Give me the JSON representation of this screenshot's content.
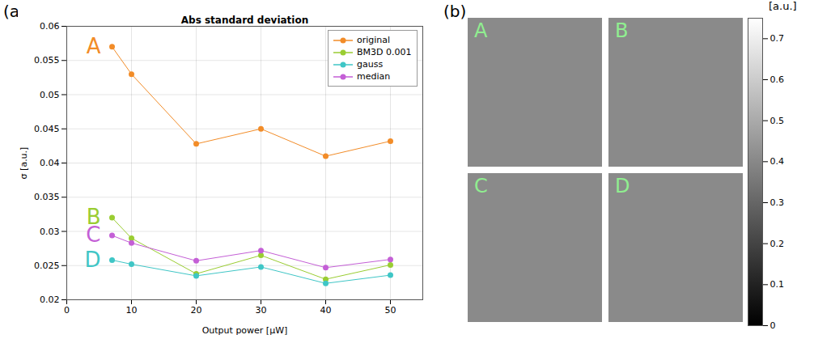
{
  "chart_data": [
    {
      "type": "line",
      "panel_label": "(a)",
      "title": "Abs standard deviation",
      "x_label": "Output power [μW]",
      "y_label": "σ [a.u.]",
      "x": [
        7,
        10,
        20,
        30,
        40,
        50
      ],
      "series": [
        {
          "name": "original",
          "color": "#f28c28",
          "marker": "circle",
          "values": [
            0.057,
            0.053,
            0.0428,
            0.045,
            0.041,
            0.0432
          ]
        },
        {
          "name": "BM3D 0.001",
          "color": "#9acd32",
          "marker": "circle",
          "values": [
            0.032,
            0.029,
            0.0238,
            0.0265,
            0.023,
            0.0251
          ]
        },
        {
          "name": "gauss",
          "color": "#3fc6c6",
          "marker": "circle",
          "values": [
            0.0258,
            0.0252,
            0.0235,
            0.0248,
            0.0224,
            0.0236
          ]
        },
        {
          "name": "median",
          "color": "#c45fd6",
          "marker": "circle",
          "values": [
            0.0294,
            0.0283,
            0.0257,
            0.0272,
            0.0247,
            0.0259
          ]
        }
      ],
      "annotations": [
        {
          "text": "A",
          "series": "original"
        },
        {
          "text": "B",
          "series": "BM3D 0.001"
        },
        {
          "text": "C",
          "series": "median"
        },
        {
          "text": "D",
          "series": "gauss"
        }
      ],
      "xlim": [
        0,
        55
      ],
      "xticks": [
        0,
        10,
        20,
        30,
        40,
        50
      ],
      "ylim": [
        0.02,
        0.06
      ],
      "yticks": [
        0.02,
        0.025,
        0.03,
        0.035,
        0.04,
        0.045,
        0.05,
        0.055,
        0.06
      ],
      "grid": true,
      "legend": "northeast"
    },
    {
      "type": "image",
      "panel_label": "(b)",
      "images": [
        {
          "label": "A"
        },
        {
          "label": "B"
        },
        {
          "label": "C"
        },
        {
          "label": "D"
        }
      ],
      "colorbar": {
        "range": [
          0,
          0.75
        ],
        "ticks": [
          0,
          0.1,
          0.2,
          0.3,
          0.4,
          0.5,
          0.6,
          0.7
        ],
        "label": "[a.u.]"
      }
    }
  ]
}
